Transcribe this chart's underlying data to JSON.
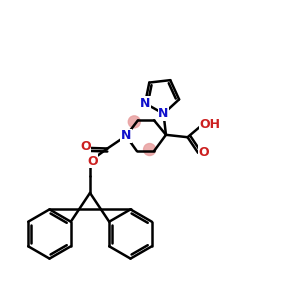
{
  "bg_color": "#ffffff",
  "bond_color": "#000000",
  "N_color": "#1010cc",
  "O_color": "#cc2020",
  "highlight_color": "#e8a0a0",
  "bond_width": 1.8,
  "figsize": [
    3.0,
    3.0
  ],
  "dpi": 100,
  "xlim": [
    0,
    10
  ],
  "ylim": [
    0,
    10
  ]
}
